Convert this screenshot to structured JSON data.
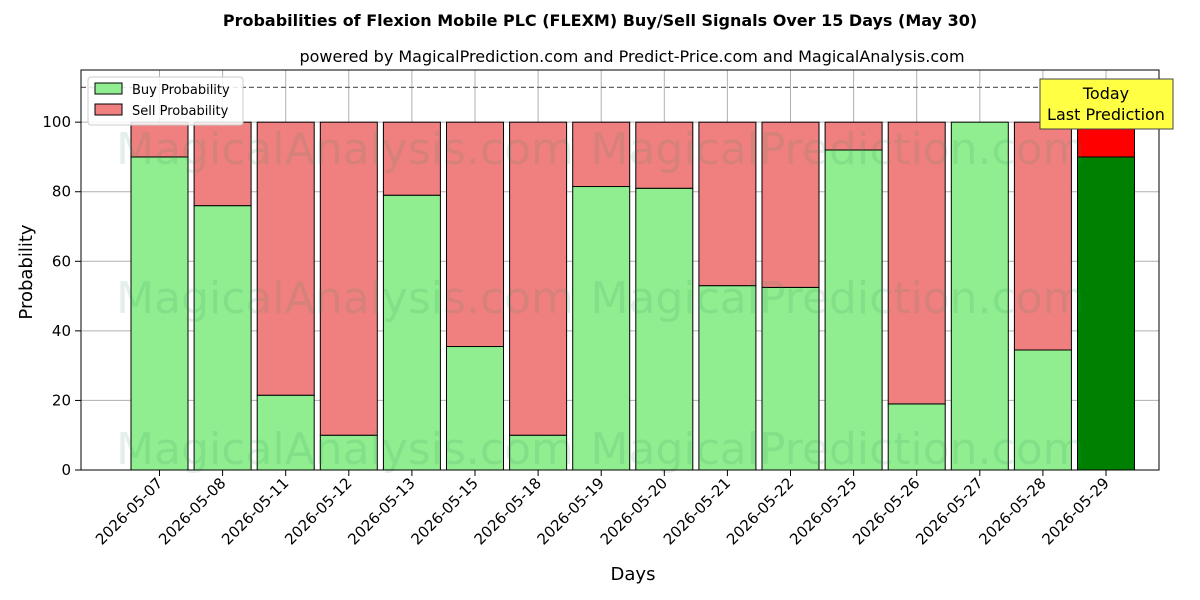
{
  "chart_data": {
    "type": "bar",
    "stacked": true,
    "title": "Probabilities of Flexion Mobile PLC (FLEXM) Buy/Sell Signals Over 15 Days (May 30)",
    "subtitle": "powered by MagicalPrediction.com and Predict-Price.com and MagicalAnalysis.com",
    "xlabel": "Days",
    "ylabel": "Probability",
    "ylim": [
      0,
      115
    ],
    "yticks": [
      0,
      20,
      40,
      60,
      80,
      100
    ],
    "grid": true,
    "legend_position": "upper-left",
    "reference_line": 110,
    "categories": [
      "2026-05-07",
      "2026-05-08",
      "2026-05-11",
      "2026-05-12",
      "2026-05-13",
      "2026-05-15",
      "2026-05-18",
      "2026-05-19",
      "2026-05-20",
      "2026-05-21",
      "2026-05-22",
      "2026-05-25",
      "2026-05-26",
      "2026-05-27",
      "2026-05-28",
      "2026-05-29"
    ],
    "series": [
      {
        "name": "Buy Probability",
        "color": "#90ee90",
        "highlight_color": "#008000",
        "values": [
          90,
          76,
          21.5,
          10,
          79,
          35.5,
          10,
          81.5,
          81,
          53,
          52.5,
          92,
          19,
          100,
          34.5,
          90
        ]
      },
      {
        "name": "Sell Probability",
        "color": "#f08080",
        "highlight_color": "#ff0000",
        "values": [
          10,
          24,
          78.5,
          90,
          21,
          64.5,
          90,
          18.5,
          19,
          47,
          47.5,
          8,
          81,
          0,
          65.5,
          10
        ]
      }
    ],
    "annotation": {
      "text_lines": [
        "Today",
        "Last Prediction"
      ],
      "category": "2026-05-29",
      "bg_color": "#ffff44"
    },
    "watermarks": [
      "MagicalAnalysis.com",
      "MagicalPrediction.com"
    ]
  }
}
